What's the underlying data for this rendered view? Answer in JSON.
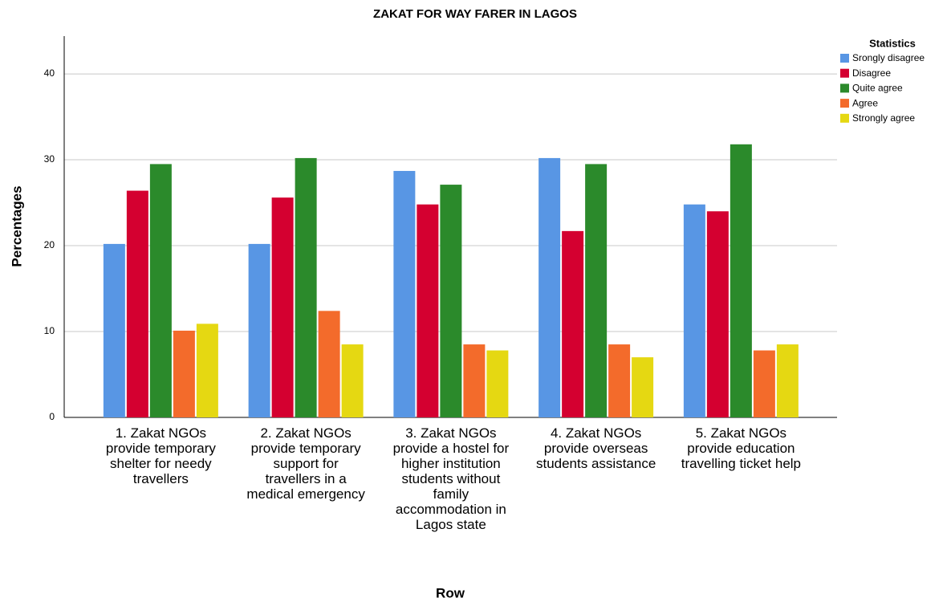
{
  "chart_data": {
    "type": "bar",
    "title": "ZAKAT FOR WAY FARER IN LAGOS",
    "y_label": "Percentages",
    "x_label": "Row",
    "legend_title": "Statistics",
    "legend_position": "right",
    "grid": true,
    "categories": [
      "1. Zakat NGOs provide temporary shelter for needy travellers",
      "2. Zakat NGOs provide temporary support for travellers in a medical emergency",
      "3. Zakat NGOs provide a hostel for higher institution students without family accommodation in Lagos state",
      "4. Zakat NGOs provide overseas students assistance",
      "5. Zakat NGOs provide education travelling ticket help"
    ],
    "series": [
      {
        "name": "Srongly disagree",
        "color": "#5896e4",
        "values": [
          20.2,
          20.2,
          28.7,
          30.2,
          24.8
        ]
      },
      {
        "name": "Disagree",
        "color": "#d40030",
        "values": [
          26.4,
          25.6,
          24.8,
          21.7,
          24.0
        ]
      },
      {
        "name": "Quite agree",
        "color": "#2b8a2b",
        "values": [
          29.5,
          30.2,
          27.1,
          29.5,
          31.8
        ]
      },
      {
        "name": "Agree",
        "color": "#f36b2b",
        "values": [
          10.1,
          12.4,
          8.5,
          8.5,
          7.8
        ]
      },
      {
        "name": "Strongly agree",
        "color": "#e5d812",
        "values": [
          10.9,
          8.5,
          7.8,
          7.0,
          8.5
        ]
      }
    ],
    "ylim": [
      0,
      44.4
    ],
    "yticks": [
      0,
      10,
      20,
      30,
      40
    ]
  }
}
